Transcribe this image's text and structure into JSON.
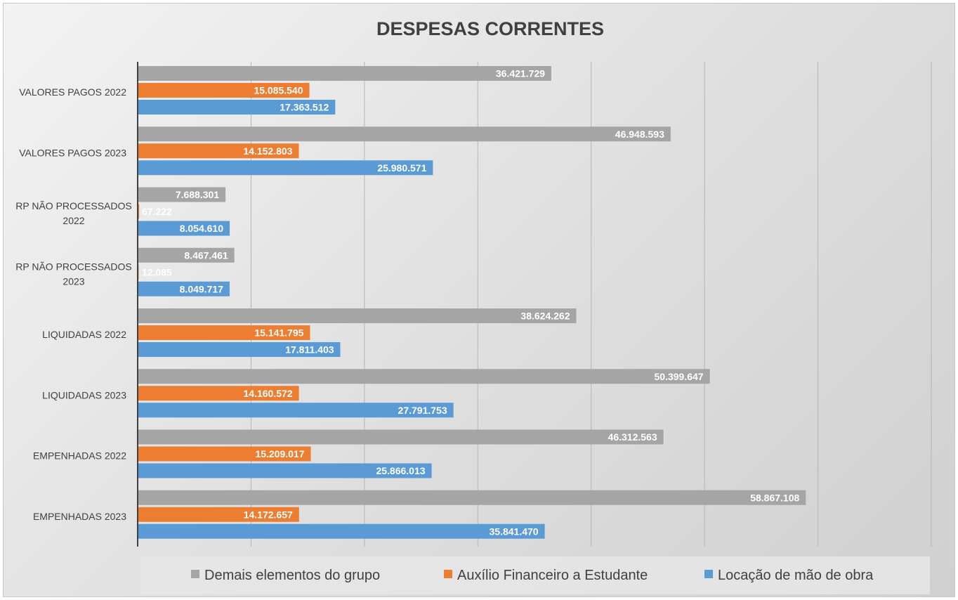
{
  "chart_data": {
    "type": "bar",
    "orientation": "horizontal",
    "title": "DESPESAS CORRENTES",
    "categories": [
      "VALORES PAGOS 2022",
      "VALORES PAGOS 2023",
      "RP NÃO PROCESSADOS 2022",
      "RP NÃO PROCESSADOS 2023",
      "LIQUIDADAS 2022",
      "LIQUIDADAS 2023",
      "EMPENHADAS 2022",
      "EMPENHADAS 2023"
    ],
    "category_lines": [
      [
        "VALORES PAGOS 2022"
      ],
      [
        "VALORES PAGOS 2023"
      ],
      [
        "RP NÃO PROCESSADOS",
        "2022"
      ],
      [
        "RP NÃO PROCESSADOS",
        "2023"
      ],
      [
        "LIQUIDADAS 2022"
      ],
      [
        "LIQUIDADAS 2023"
      ],
      [
        "EMPENHADAS 2022"
      ],
      [
        "EMPENHADAS 2023"
      ]
    ],
    "series": [
      {
        "name": "Demais elementos do grupo",
        "color": "#a5a5a5",
        "values": [
          36421729,
          46948593,
          7688301,
          8467461,
          38624262,
          50399647,
          46312563,
          58867108
        ],
        "labels": [
          "36.421.729",
          "46.948.593",
          "7.688.301",
          "8.467.461",
          "38.624.262",
          "50.399.647",
          "46.312.563",
          "58.867.108"
        ]
      },
      {
        "name": "Auxílio Financeiro a Estudante",
        "color": "#ed7d31",
        "values": [
          15085540,
          14152803,
          67222,
          12085,
          15141795,
          14160572,
          15209017,
          14172657
        ],
        "labels": [
          "15.085.540",
          "14.152.803",
          "67.222",
          "12.085",
          "15.141.795",
          "14.160.572",
          "15.209.017",
          "14.172.657"
        ]
      },
      {
        "name": "Locação de mão de obra",
        "color": "#5b9bd5",
        "values": [
          17363512,
          25980571,
          8054610,
          8049717,
          17811403,
          27791753,
          25866013,
          35841470
        ],
        "labels": [
          "17.363.512",
          "25.980.571",
          "8.054.610",
          "8.049.717",
          "17.811.403",
          "27.791.753",
          "25.866.013",
          "35.841.470"
        ]
      }
    ],
    "xlim": [
      0,
      70000000
    ],
    "grid": true,
    "xaxis_tick_labels_shown": false,
    "legend_position": "bottom"
  }
}
